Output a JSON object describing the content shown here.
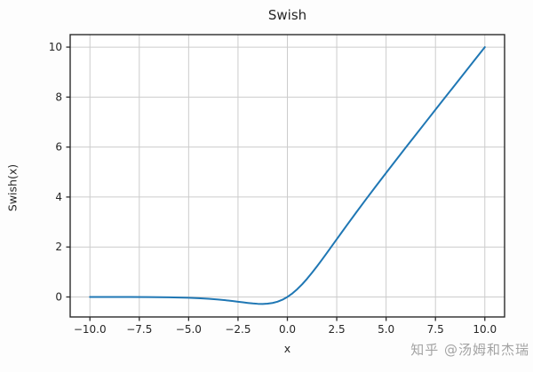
{
  "chart_data": {
    "type": "line",
    "title": "Swish",
    "xlabel": "x",
    "ylabel": "Swish(x)",
    "xlim": [
      -11,
      11
    ],
    "ylim": [
      -0.8,
      10.5
    ],
    "grid": true,
    "legend": "none",
    "x_ticks": {
      "values": [
        -10,
        -7.5,
        -5,
        -2.5,
        0,
        2.5,
        5,
        7.5,
        10
      ],
      "labels": [
        "−10.0",
        "−7.5",
        "−5.0",
        "−2.5",
        "0.0",
        "2.5",
        "5.0",
        "7.5",
        "10.0"
      ]
    },
    "y_ticks": {
      "values": [
        0,
        2,
        4,
        6,
        8,
        10
      ],
      "labels": [
        "0",
        "2",
        "4",
        "6",
        "8",
        "10"
      ]
    },
    "series": [
      {
        "name": "Swish",
        "color": "#1f77b4",
        "x": [
          -10,
          -9,
          -8,
          -7,
          -6,
          -5.5,
          -5,
          -4.5,
          -4,
          -3.5,
          -3,
          -2.75,
          -2.5,
          -2.25,
          -2,
          -1.75,
          -1.5,
          -1.25,
          -1,
          -0.75,
          -0.5,
          -0.25,
          0,
          0.25,
          0.5,
          0.75,
          1,
          1.25,
          1.5,
          1.75,
          2,
          2.25,
          2.5,
          2.75,
          3,
          3.5,
          4,
          4.5,
          5,
          5.5,
          6,
          6.5,
          7,
          7.5,
          8,
          8.5,
          9,
          9.5,
          10
        ],
        "y": [
          -0.0005,
          -0.0011,
          -0.0027,
          -0.0064,
          -0.0148,
          -0.0224,
          -0.0335,
          -0.0495,
          -0.0719,
          -0.1026,
          -0.1423,
          -0.1652,
          -0.1897,
          -0.2145,
          -0.2384,
          -0.2591,
          -0.2736,
          -0.2784,
          -0.2689,
          -0.2406,
          -0.1888,
          -0.1095,
          0,
          0.1405,
          0.3112,
          0.5094,
          0.7311,
          0.9717,
          1.2264,
          1.4905,
          1.7616,
          2.0355,
          2.3104,
          2.5848,
          2.8577,
          3.3974,
          3.9281,
          4.4506,
          4.9665,
          5.4776,
          5.9852,
          6.4902,
          6.9936,
          7.4959,
          7.9973,
          8.4983,
          8.9989,
          9.4993,
          9.9996
        ]
      }
    ],
    "colors": {
      "grid": "#cccccc",
      "axis": "#2b2b2b",
      "text": "#262626",
      "background": "#ffffff"
    }
  },
  "watermark": {
    "text": "知乎 @汤姆和杰瑞",
    "color": "#a3a3a3"
  }
}
